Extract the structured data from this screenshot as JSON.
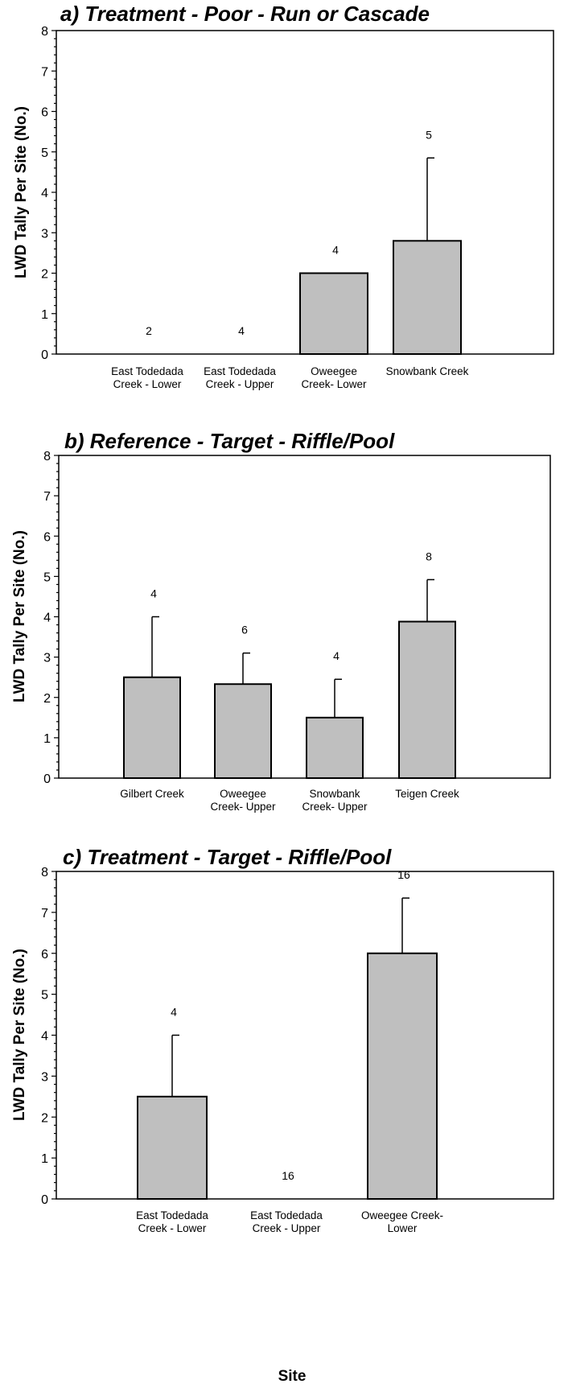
{
  "chart_data": [
    {
      "type": "bar",
      "title": "a) Treatment - Poor - Run or Cascade",
      "ylabel": "LWD Tally Per Site (No.)",
      "xlabel": "",
      "ylim": [
        0,
        8
      ],
      "yticks": [
        "0",
        "1",
        "2",
        "3",
        "4",
        "5",
        "6",
        "7",
        "8"
      ],
      "categories": [
        [
          "East Todedada",
          "Creek - Lower"
        ],
        [
          "East Todedada",
          "Creek - Upper"
        ],
        [
          "Oweegee",
          "Creek- Lower"
        ],
        [
          "Snowbank Creek"
        ]
      ],
      "values": [
        0,
        0,
        2.0,
        2.8
      ],
      "errors": [
        0,
        0,
        0,
        2.05
      ],
      "n_labels": [
        "2",
        "4",
        "4",
        "5"
      ],
      "grid": false
    },
    {
      "type": "bar",
      "title": "b) Reference - Target - Riffle/Pool",
      "ylabel": "LWD Tally Per Site (No.)",
      "xlabel": "",
      "ylim": [
        0,
        8
      ],
      "yticks": [
        "0",
        "1",
        "2",
        "3",
        "4",
        "5",
        "6",
        "7",
        "8"
      ],
      "categories": [
        [
          "Gilbert Creek"
        ],
        [
          "Oweegee",
          "Creek- Upper"
        ],
        [
          "Snowbank",
          "Creek- Upper"
        ],
        [
          "Teigen Creek"
        ]
      ],
      "values": [
        2.5,
        2.33,
        1.5,
        3.88
      ],
      "errors": [
        1.5,
        0.77,
        0.95,
        1.04
      ],
      "n_labels": [
        "4",
        "6",
        "4",
        "8"
      ],
      "grid": false
    },
    {
      "type": "bar",
      "title": "c) Treatment - Target - Riffle/Pool",
      "ylabel": "LWD Tally Per Site (No.)",
      "xlabel": "Site",
      "ylim": [
        0,
        8
      ],
      "yticks": [
        "0",
        "1",
        "2",
        "3",
        "4",
        "5",
        "6",
        "7",
        "8"
      ],
      "categories": [
        [
          "East Todedada",
          "Creek - Lower"
        ],
        [
          "East Todedada",
          "Creek - Upper"
        ],
        [
          "Oweegee Creek-",
          "Lower"
        ]
      ],
      "values": [
        2.5,
        0,
        6.0
      ],
      "errors": [
        1.5,
        0,
        1.35
      ],
      "n_labels": [
        "4",
        "16",
        "16"
      ],
      "grid": false
    }
  ]
}
